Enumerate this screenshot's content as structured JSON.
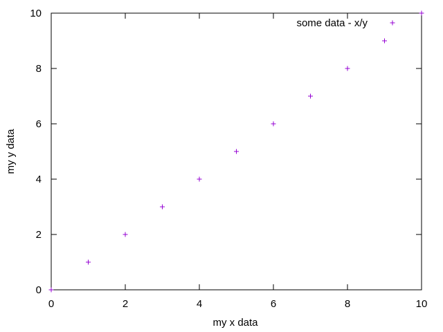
{
  "chart_data": {
    "type": "scatter",
    "xlabel": "my x data",
    "ylabel": "my y data",
    "xlim": [
      0,
      10
    ],
    "ylim": [
      0,
      10
    ],
    "xticks": [
      0,
      2,
      4,
      6,
      8,
      10
    ],
    "yticks": [
      0,
      2,
      4,
      6,
      8,
      10
    ],
    "grid": false,
    "legend_position": "top-right",
    "series": [
      {
        "name": "some data - x/y",
        "color": "#9400d3",
        "marker": "plus",
        "x": [
          0,
          1,
          2,
          3,
          4,
          5,
          6,
          7,
          8,
          9,
          10
        ],
        "y": [
          0,
          1,
          2,
          3,
          4,
          5,
          6,
          7,
          8,
          9,
          10
        ]
      }
    ]
  }
}
